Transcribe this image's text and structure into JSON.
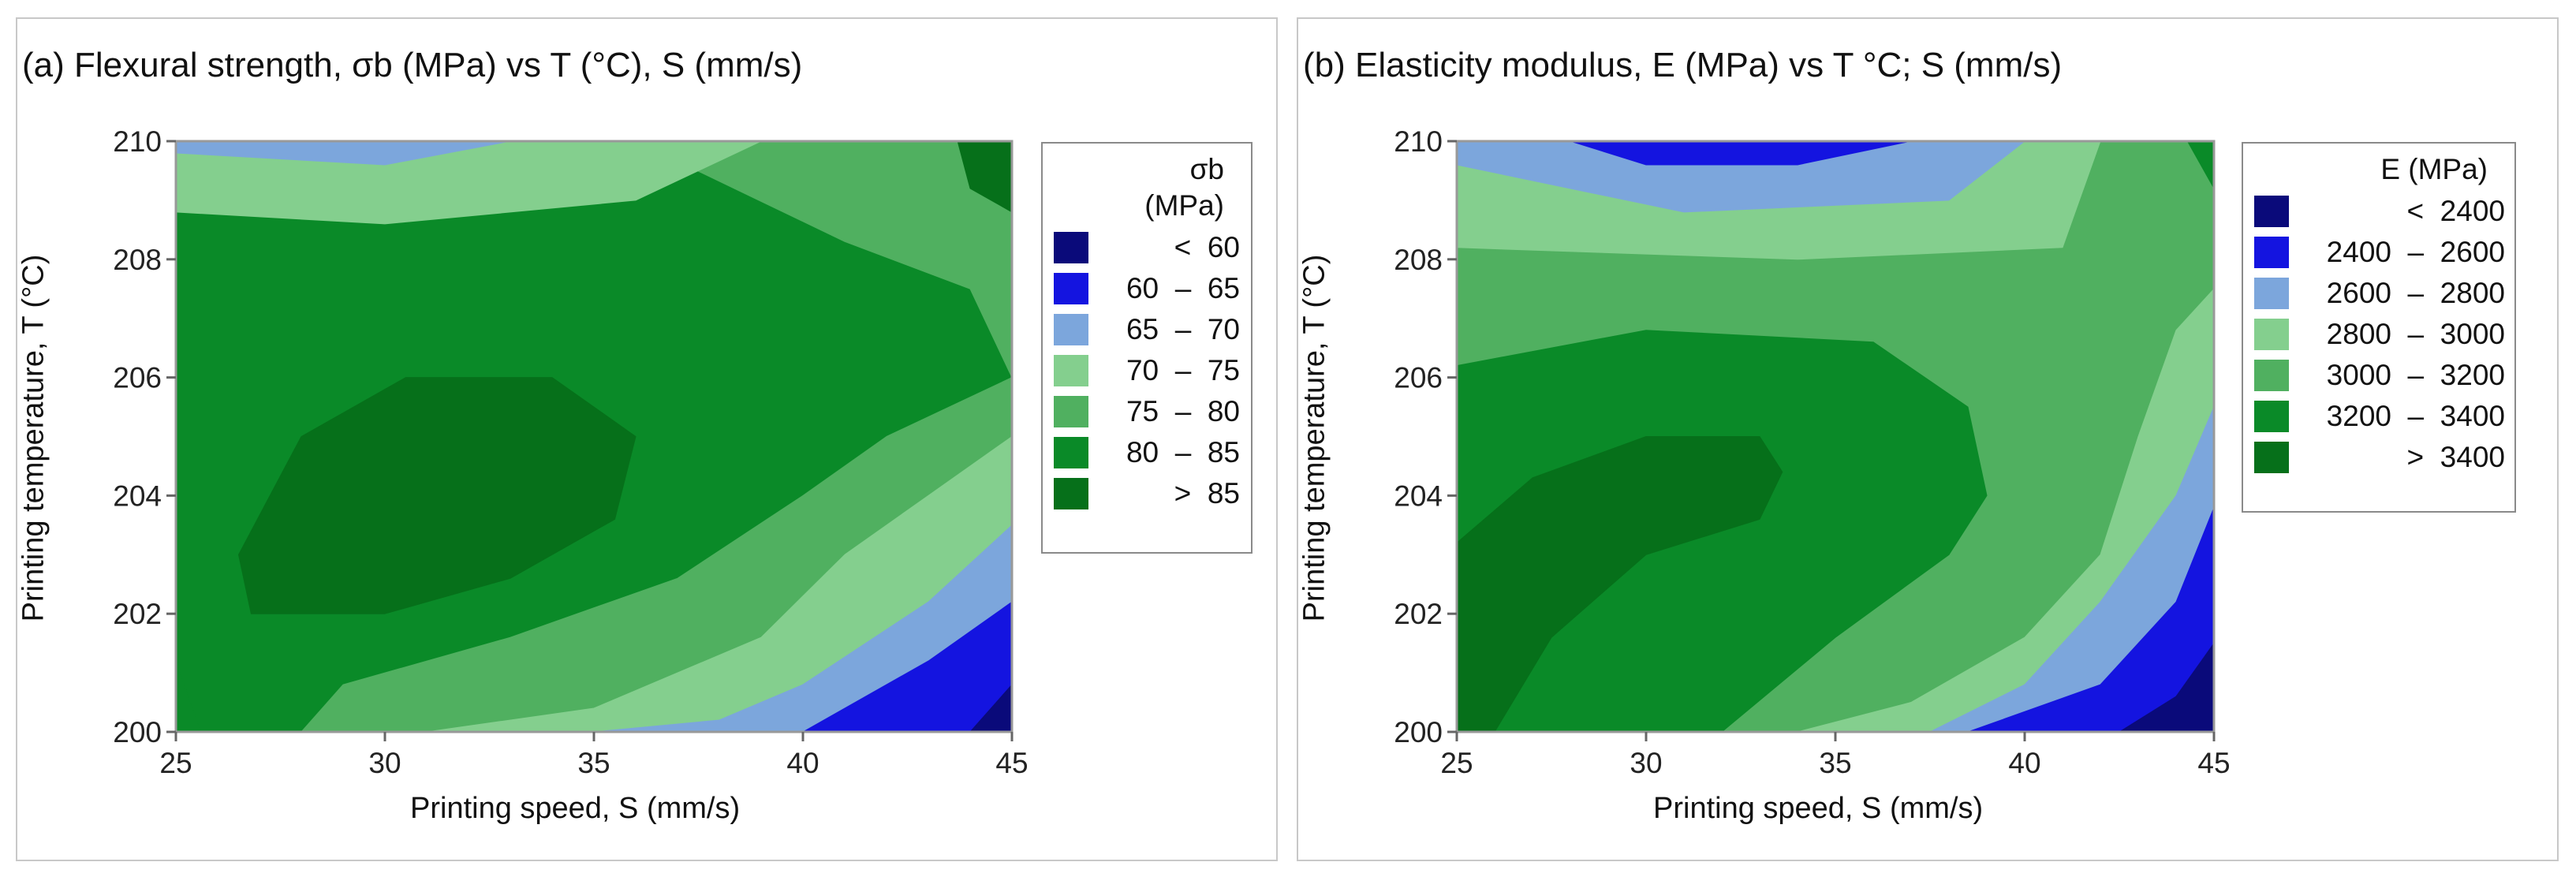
{
  "chart_data": [
    {
      "panel": "a",
      "type": "contour",
      "title": "(a) Flexural strength, σb (MPa) vs T (°C), S (mm/s)",
      "xlabel": "Printing speed, S (mm/s)",
      "ylabel": "Printing temperature, T (°C)",
      "xlim": [
        25,
        45
      ],
      "ylim": [
        200,
        210
      ],
      "xticks": [
        "25",
        "30",
        "35",
        "40",
        "45"
      ],
      "yticks": [
        "200",
        "202",
        "204",
        "206",
        "208",
        "210"
      ],
      "legend_title": [
        "σb",
        "(MPa)"
      ],
      "levels": [
        {
          "label": "<  60",
          "color": "#0a0a7a"
        },
        {
          "label": "60  –  65",
          "color": "#1414e0"
        },
        {
          "label": "65  –  70",
          "color": "#7ca6dc"
        },
        {
          "label": "70  –  75",
          "color": "#84cf8e"
        },
        {
          "label": "75  –  80",
          "color": "#50b060"
        },
        {
          "label": "80  –  85",
          "color": "#0a8a28"
        },
        {
          "label": ">  85",
          "color": "#06701a"
        }
      ],
      "regions": [
        {
          "level": 5,
          "outline": [
            [
              25,
              200
            ],
            [
              45,
              200
            ],
            [
              45,
              210
            ],
            [
              25,
              210
            ]
          ]
        },
        {
          "level": 4,
          "outline": [
            [
              43,
              210
            ],
            [
              45,
              210
            ],
            [
              45,
              206
            ],
            [
              44,
              207.5
            ],
            [
              41,
              208.3
            ],
            [
              36,
              210
            ]
          ]
        },
        {
          "level": 3,
          "outline": [
            [
              25,
              210
            ],
            [
              39,
              210
            ],
            [
              36,
              209
            ],
            [
              30,
              208.6
            ],
            [
              25,
              208.8
            ]
          ]
        },
        {
          "level": 2,
          "outline": [
            [
              25,
              210
            ],
            [
              33,
              210
            ],
            [
              30,
              209.6
            ],
            [
              25,
              209.8
            ]
          ]
        },
        {
          "level": 4,
          "outline": [
            [
              28,
              200
            ],
            [
              45,
              200
            ],
            [
              45,
              206
            ],
            [
              42,
              205
            ],
            [
              40,
              204
            ],
            [
              37,
              202.6
            ],
            [
              33,
              201.6
            ],
            [
              29,
              200.8
            ]
          ]
        },
        {
          "level": 3,
          "outline": [
            [
              31,
              200
            ],
            [
              45,
              200
            ],
            [
              45,
              205
            ],
            [
              43,
              204
            ],
            [
              41,
              203
            ],
            [
              39,
              201.6
            ],
            [
              35,
              200.4
            ]
          ]
        },
        {
          "level": 2,
          "outline": [
            [
              35,
              200
            ],
            [
              45,
              200
            ],
            [
              45,
              203.5
            ],
            [
              43,
              202.2
            ],
            [
              40,
              200.8
            ],
            [
              38,
              200.2
            ]
          ]
        },
        {
          "level": 1,
          "outline": [
            [
              40,
              200
            ],
            [
              45,
              200
            ],
            [
              45,
              202.2
            ],
            [
              43,
              201.2
            ]
          ]
        },
        {
          "level": 0,
          "outline": [
            [
              44,
              200
            ],
            [
              45,
              200
            ],
            [
              45,
              200.8
            ]
          ]
        },
        {
          "level": 6,
          "outline": [
            [
              26.5,
              203
            ],
            [
              28,
              205
            ],
            [
              30.5,
              206
            ],
            [
              34,
              206
            ],
            [
              36,
              205
            ],
            [
              35.5,
              203.6
            ],
            [
              33,
              202.6
            ],
            [
              30,
              202
            ],
            [
              26.8,
              202
            ]
          ]
        },
        {
          "level": 6,
          "outline": [
            [
              43.7,
              210
            ],
            [
              45,
              210
            ],
            [
              45,
              208.8
            ],
            [
              44,
              209.2
            ]
          ]
        },
        {
          "level": 5,
          "outline": [
            [
              25,
              200
            ],
            [
              25,
              201.2
            ],
            [
              25.6,
              200
            ]
          ]
        }
      ]
    },
    {
      "panel": "b",
      "type": "contour",
      "title": "(b) Elasticity modulus, E (MPa) vs T °C; S (mm/s)",
      "xlabel": "Printing speed, S (mm/s)",
      "ylabel": "Printing temperature, T (°C)",
      "xlim": [
        25,
        45
      ],
      "ylim": [
        200,
        210
      ],
      "xticks": [
        "25",
        "30",
        "35",
        "40",
        "45"
      ],
      "yticks": [
        "200",
        "202",
        "204",
        "206",
        "208",
        "210"
      ],
      "legend_title": [
        "E (MPa)"
      ],
      "levels": [
        {
          "label": "<  2400",
          "color": "#0a0a7a"
        },
        {
          "label": "2400  –  2600",
          "color": "#1414e0"
        },
        {
          "label": "2600  –  2800",
          "color": "#7ca6dc"
        },
        {
          "label": "2800  –  3000",
          "color": "#84cf8e"
        },
        {
          "label": "3000  –  3200",
          "color": "#50b060"
        },
        {
          "label": "3200  –  3400",
          "color": "#0a8a28"
        },
        {
          "label": ">  3400",
          "color": "#06701a"
        }
      ],
      "regions": [
        {
          "level": 4,
          "outline": [
            [
              25,
              200
            ],
            [
              45,
              200
            ],
            [
              45,
              210
            ],
            [
              25,
              210
            ]
          ]
        },
        {
          "level": 3,
          "outline": [
            [
              25,
              210
            ],
            [
              42,
              210
            ],
            [
              41,
              208.2
            ],
            [
              34,
              208
            ],
            [
              25,
              208.2
            ]
          ]
        },
        {
          "level": 2,
          "outline": [
            [
              25,
              210
            ],
            [
              40,
              210
            ],
            [
              38,
              209
            ],
            [
              31,
              208.8
            ],
            [
              25,
              209.6
            ]
          ]
        },
        {
          "level": 1,
          "outline": [
            [
              28,
              210
            ],
            [
              37,
              210
            ],
            [
              34,
              209.6
            ],
            [
              30,
              209.6
            ]
          ]
        },
        {
          "level": 5,
          "outline": [
            [
              25,
              200
            ],
            [
              32,
              200
            ],
            [
              35,
              201.6
            ],
            [
              38,
              203
            ],
            [
              39,
              204
            ],
            [
              38.5,
              205.5
            ],
            [
              36,
              206.6
            ],
            [
              30,
              206.8
            ],
            [
              25,
              206.2
            ]
          ]
        },
        {
          "level": 6,
          "outline": [
            [
              25,
              200
            ],
            [
              26,
              200
            ],
            [
              27.5,
              201.6
            ],
            [
              30,
              203
            ],
            [
              33,
              203.6
            ],
            [
              33.6,
              204.4
            ],
            [
              33,
              205
            ],
            [
              30,
              205
            ],
            [
              27,
              204.3
            ],
            [
              25,
              203.2
            ]
          ]
        },
        {
          "level": 3,
          "outline": [
            [
              34,
              200
            ],
            [
              45,
              200
            ],
            [
              45,
              207.5
            ],
            [
              44,
              206.8
            ],
            [
              43,
              205
            ],
            [
              42,
              203
            ],
            [
              40,
              201.6
            ],
            [
              37,
              200.5
            ]
          ]
        },
        {
          "level": 2,
          "outline": [
            [
              37.5,
              200
            ],
            [
              45,
              200
            ],
            [
              45,
              205.5
            ],
            [
              44,
              204
            ],
            [
              42,
              202.2
            ],
            [
              40,
              200.8
            ]
          ]
        },
        {
          "level": 1,
          "outline": [
            [
              38.5,
              200
            ],
            [
              45,
              200
            ],
            [
              45,
              203.8
            ],
            [
              44,
              202.2
            ],
            [
              42,
              200.8
            ]
          ]
        },
        {
          "level": 0,
          "outline": [
            [
              42.5,
              200
            ],
            [
              45,
              200
            ],
            [
              45,
              201.5
            ],
            [
              44,
              200.6
            ]
          ]
        },
        {
          "level": 5,
          "outline": [
            [
              44.3,
              210
            ],
            [
              45,
              210
            ],
            [
              45,
              209.2
            ]
          ]
        }
      ]
    }
  ]
}
